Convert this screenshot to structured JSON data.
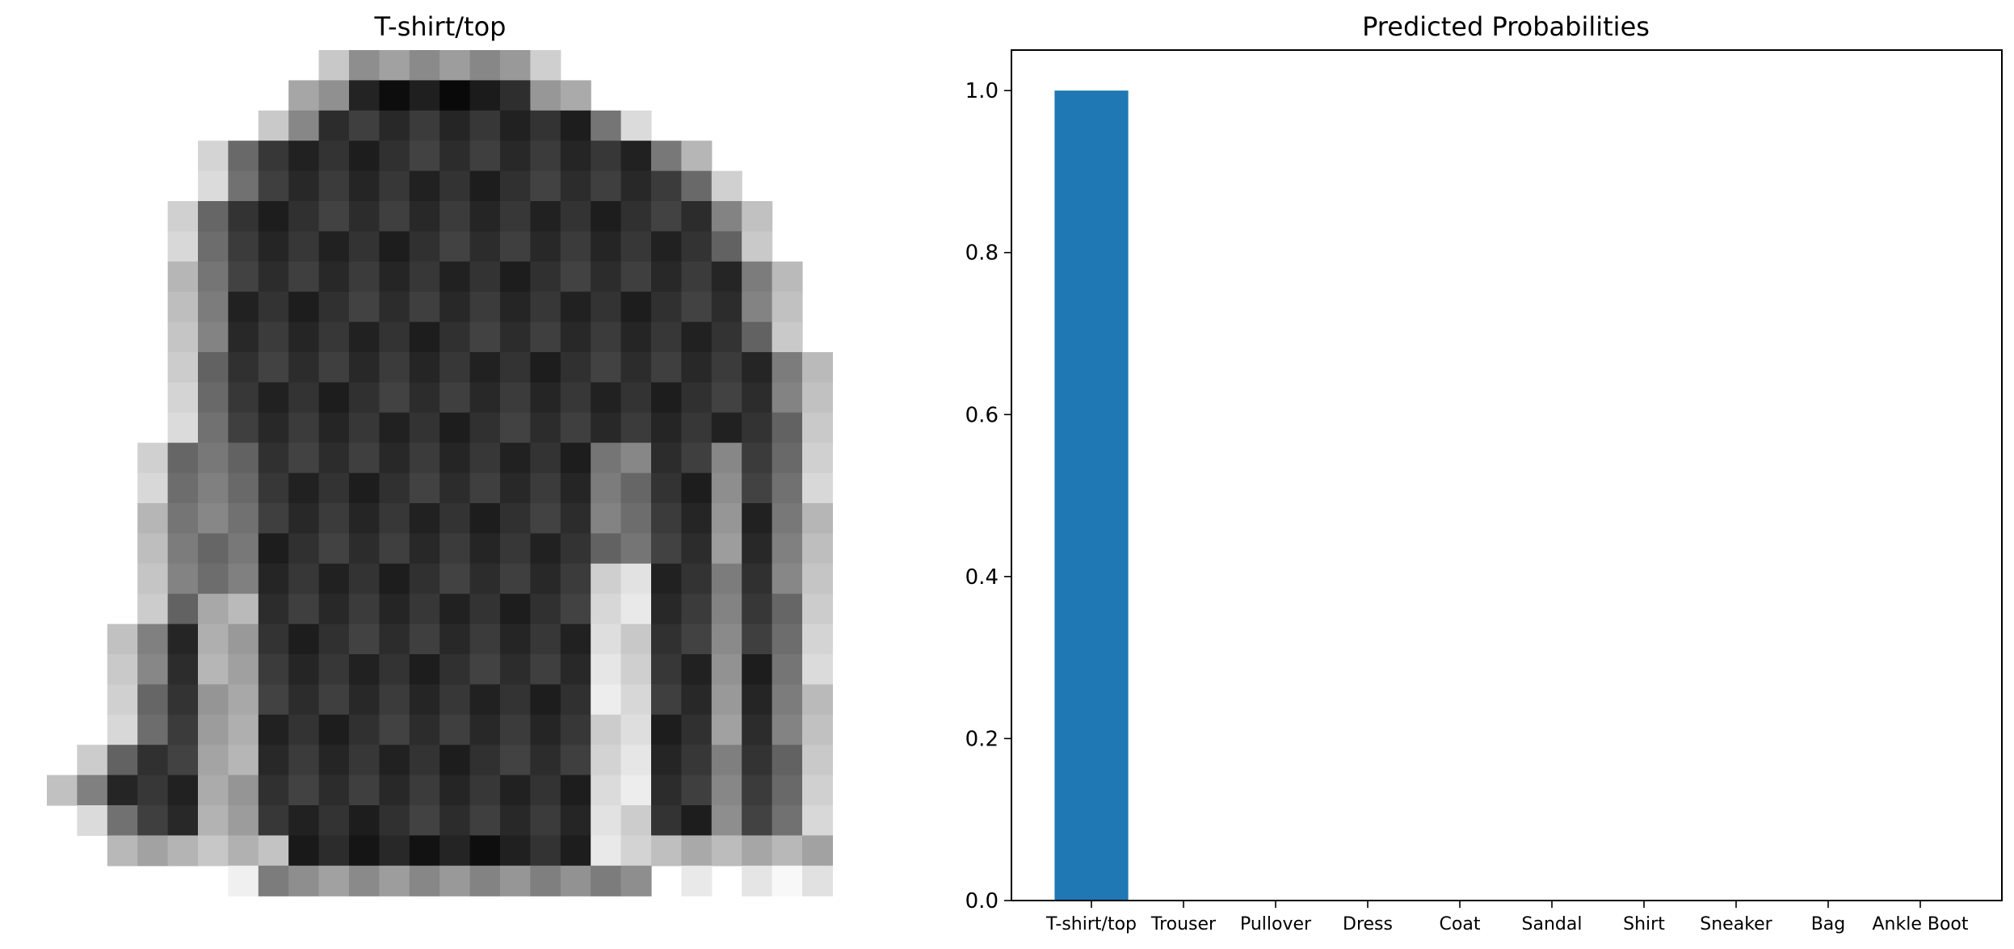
{
  "figure": {
    "image_panel": {
      "title": "T-shirt/top",
      "grid_rows": 28,
      "grid_cols": 28,
      "colormap": "gray_r"
    },
    "prob_panel": {
      "title": "Predicted Probabilities"
    }
  },
  "chart_data": {
    "type": "bar",
    "title": "Predicted Probabilities",
    "xlabel": "",
    "ylabel": "",
    "categories": [
      "T-shirt/top",
      "Trouser",
      "Pullover",
      "Dress",
      "Coat",
      "Sandal",
      "Shirt",
      "Sneaker",
      "Bag",
      "Ankle Boot"
    ],
    "values": [
      1.0,
      0.0,
      0.0,
      0.0,
      0.0,
      0.0,
      0.0,
      0.0,
      0.0,
      0.0
    ],
    "ylim": [
      0,
      1.05
    ],
    "yticks": [
      "0.0",
      "0.2",
      "0.4",
      "0.6",
      "0.8",
      "1.0"
    ],
    "grid": false,
    "legend": "none",
    "bar_color": "#1f77b4"
  }
}
